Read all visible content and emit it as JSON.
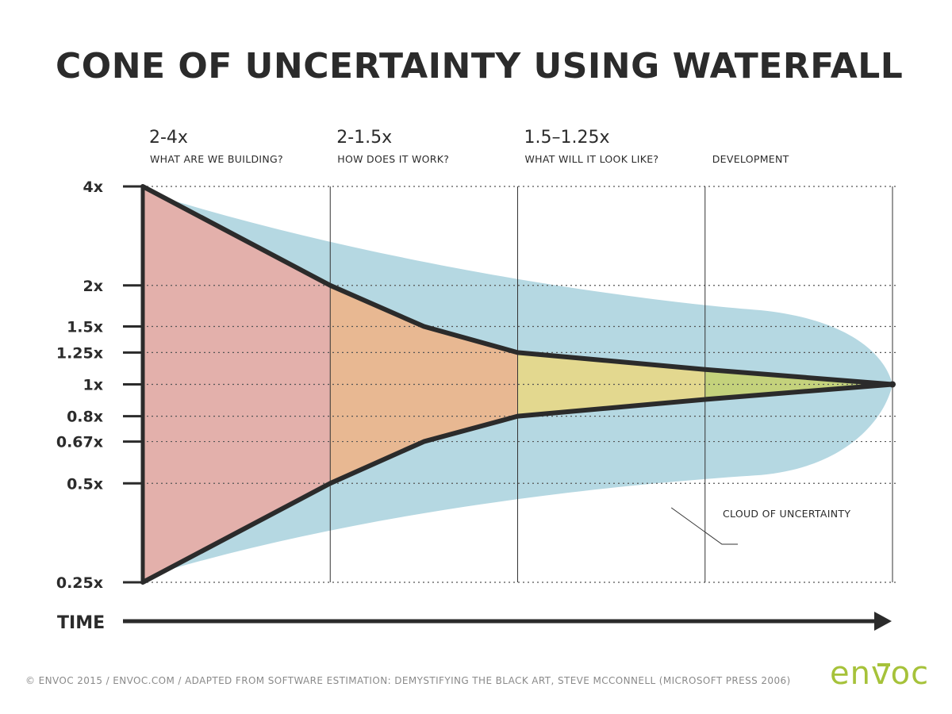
{
  "title": "CONE OF UNCERTAINTY USING WATERFALL",
  "footer": "© ENVOC 2015 / ENVOC.COM / ADAPTED FROM SOFTWARE ESTIMATION: DEMYSTIFYING THE BLACK ART, STEVE MCCONNELL (MICROSOFT PRESS 2006)",
  "logo": "envoc",
  "colors": {
    "cloud": "#b5d8e2",
    "phase1": "#e3b0ab",
    "phase2": "#e8b892",
    "phase3": "#e3d88f",
    "phase4": "#c4d27c",
    "line": "#2b2b2b",
    "logo": "#a6c23a"
  },
  "chart_data": {
    "type": "area",
    "title": "CONE OF UNCERTAINTY USING WATERFALL",
    "xlabel": "TIME",
    "ylabel": "",
    "y_scale": "log",
    "y_ticks": [
      {
        "value": 4,
        "label": "4x"
      },
      {
        "value": 2,
        "label": "2x"
      },
      {
        "value": 1.5,
        "label": "1.5x"
      },
      {
        "value": 1.25,
        "label": "1.25x"
      },
      {
        "value": 1,
        "label": "1x"
      },
      {
        "value": 0.8,
        "label": "0.8x"
      },
      {
        "value": 0.67,
        "label": "0.67x"
      },
      {
        "value": 0.5,
        "label": "0.5x"
      },
      {
        "value": 0.25,
        "label": "0.25x"
      }
    ],
    "phases": [
      {
        "range": "2-4x",
        "name": "WHAT ARE WE BUILDING?"
      },
      {
        "range": "2-1.5x",
        "name": "HOW DOES IT WORK?"
      },
      {
        "range": "1.5–1.25x",
        "name": "WHAT WILL IT LOOK LIKE?"
      },
      {
        "range": "",
        "name": "DEVELOPMENT"
      }
    ],
    "milestones_x": [
      0,
      1,
      2,
      3,
      4
    ],
    "series": [
      {
        "points": [
          [
            0,
            4
          ],
          [
            1,
            2
          ],
          [
            1.5,
            1.5
          ],
          [
            2,
            1.25
          ],
          [
            3,
            1.11
          ],
          [
            4,
            1
          ]
        ]
      },
      {
        "points": [
          [
            0,
            0.25
          ],
          [
            1,
            0.5
          ],
          [
            1.5,
            0.67
          ],
          [
            2,
            0.8
          ],
          [
            3,
            0.9
          ],
          [
            4,
            1
          ]
        ]
      }
    ],
    "cloud_annotation": "CLOUD OF UNCERTAINTY",
    "grid": true
  }
}
